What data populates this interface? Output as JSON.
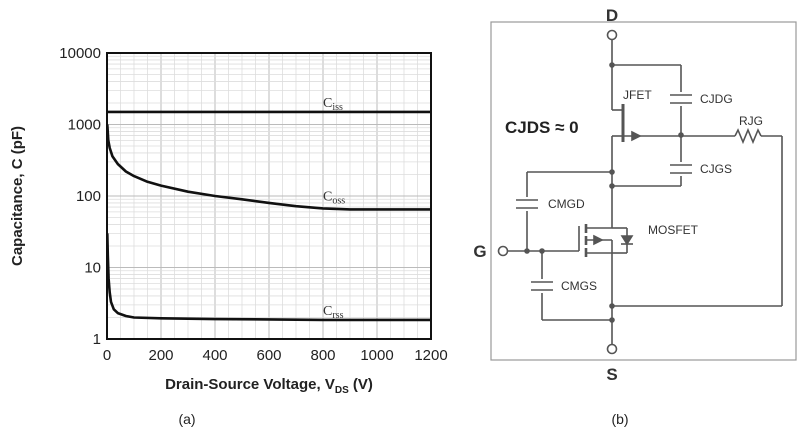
{
  "chart_data": {
    "type": "line",
    "title": "",
    "xlabel": "Drain-Source Voltage, V",
    "xlabel_sub": "DS",
    "xlabel_unit": " (V)",
    "ylabel": "Capacitance, C (pF)",
    "xlim": [
      0,
      1200
    ],
    "ylim": [
      1,
      10000
    ],
    "yscale": "log",
    "grid": true,
    "x_ticks": [
      "0",
      "200",
      "400",
      "600",
      "800",
      "1000",
      "1200"
    ],
    "y_ticks": [
      "1",
      "10",
      "100",
      "1000",
      "10000"
    ],
    "series": [
      {
        "name": "C",
        "sub": "iss",
        "label_at": [
          800,
          1750
        ],
        "x": [
          0,
          100,
          200,
          400,
          600,
          800,
          1000,
          1200
        ],
        "values": [
          1500,
          1500,
          1500,
          1500,
          1500,
          1500,
          1500,
          1500
        ]
      },
      {
        "name": "C",
        "sub": "oss",
        "label_at": [
          800,
          87
        ],
        "x": [
          1,
          5,
          10,
          20,
          40,
          70,
          100,
          150,
          200,
          300,
          400,
          500,
          600,
          700,
          800,
          900,
          1000,
          1100,
          1200
        ],
        "values": [
          1000,
          600,
          470,
          360,
          280,
          220,
          190,
          158,
          140,
          115,
          100,
          90,
          80,
          72,
          67,
          65,
          65,
          65,
          65
        ]
      },
      {
        "name": "C",
        "sub": "rss",
        "label_at": [
          800,
          2.15
        ],
        "x": [
          1,
          3,
          6,
          10,
          15,
          25,
          40,
          70,
          100,
          200,
          400,
          600,
          800,
          1000,
          1200
        ],
        "values": [
          30,
          15,
          7,
          4.5,
          3.3,
          2.6,
          2.3,
          2.1,
          2.0,
          1.95,
          1.9,
          1.88,
          1.85,
          1.85,
          1.85
        ]
      }
    ]
  },
  "captions": {
    "a": "(a)",
    "b": "(b)"
  },
  "circuit": {
    "node_drain": "D",
    "node_source": "S",
    "node_gate": "G",
    "jfet_label": "JFET",
    "mosfet_label": "MOSFET",
    "cjds_label": "CJDS ≈ 0",
    "cjdg_label": "CJDG",
    "cjgs_label": "CJGS",
    "rjg_label": "RJG",
    "cmgd_label": "CMGD",
    "cmgs_label": "CMGS"
  }
}
